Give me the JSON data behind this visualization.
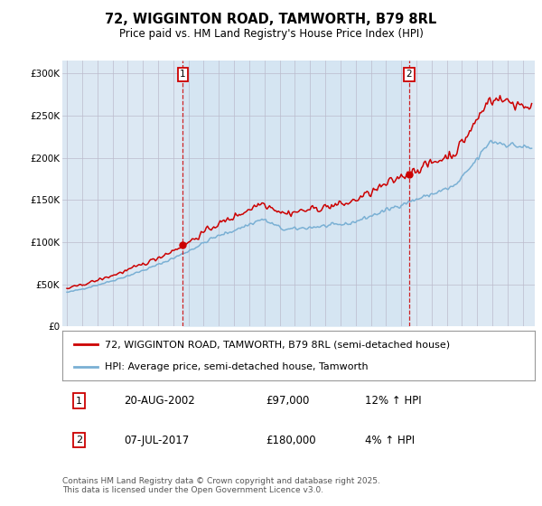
{
  "title": "72, WIGGINTON ROAD, TAMWORTH, B79 8RL",
  "subtitle": "Price paid vs. HM Land Registry's House Price Index (HPI)",
  "ylabel_ticks": [
    "£0",
    "£50K",
    "£100K",
    "£150K",
    "£200K",
    "£250K",
    "£300K"
  ],
  "ytick_values": [
    0,
    50000,
    100000,
    150000,
    200000,
    250000,
    300000
  ],
  "ylim": [
    0,
    315000
  ],
  "xlim_start": 1994.7,
  "xlim_end": 2025.8,
  "sale1_x": 2002.63,
  "sale1_y": 97000,
  "sale1_label": "1",
  "sale1_date": "20-AUG-2002",
  "sale1_price": "£97,000",
  "sale1_hpi": "12% ↑ HPI",
  "sale2_x": 2017.52,
  "sale2_y": 180000,
  "sale2_label": "2",
  "sale2_date": "07-JUL-2017",
  "sale2_price": "£180,000",
  "sale2_hpi": "4% ↑ HPI",
  "legend_line1": "72, WIGGINTON ROAD, TAMWORTH, B79 8RL (semi-detached house)",
  "legend_line2": "HPI: Average price, semi-detached house, Tamworth",
  "footer": "Contains HM Land Registry data © Crown copyright and database right 2025.\nThis data is licensed under the Open Government Licence v3.0.",
  "line_color_red": "#cc0000",
  "line_color_blue": "#7ab0d4",
  "fill_color": "#ccddf0",
  "background_color": "#dce8f3",
  "vline_color": "#cc0000",
  "marker_box_color": "#cc0000",
  "title_fontsize": 10.5,
  "subtitle_fontsize": 8.5,
  "tick_fontsize": 7.5,
  "legend_fontsize": 8,
  "footer_fontsize": 6.5
}
